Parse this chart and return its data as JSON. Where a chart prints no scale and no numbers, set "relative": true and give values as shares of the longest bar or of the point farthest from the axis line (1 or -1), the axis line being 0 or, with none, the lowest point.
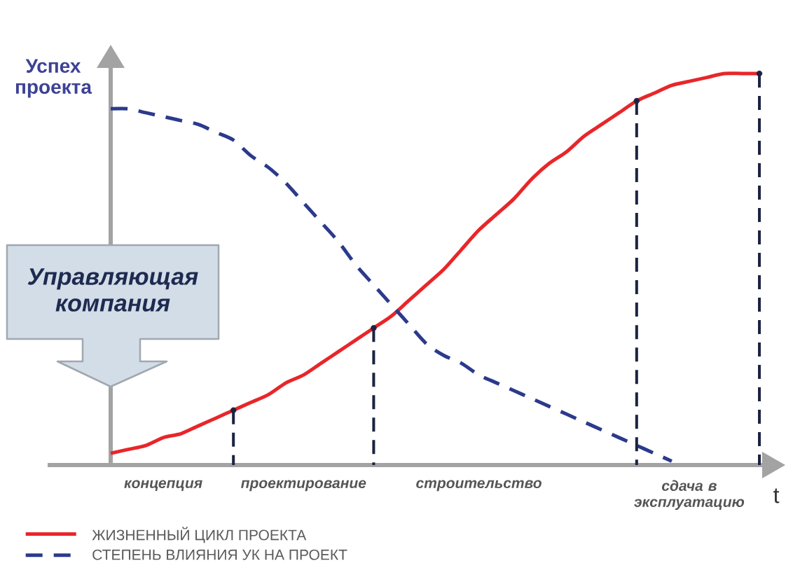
{
  "chart_data": {
    "type": "line",
    "relative": true,
    "categories": [
      null,
      null,
      null,
      "концепция",
      null,
      null,
      null,
      null,
      null,
      null,
      null,
      "проектирование",
      null,
      null,
      null,
      null,
      null,
      null,
      null,
      null,
      null,
      "строительство",
      null,
      null,
      null,
      null,
      null,
      null,
      null,
      null,
      null,
      null,
      null,
      "сдача в эксплуатацию",
      null,
      null,
      null,
      null
    ],
    "xlabel": "t",
    "ylabel": "Успех проекта",
    "annotations": [
      "Управляющая компания"
    ],
    "legend": "bottom left",
    "marker": "none",
    "series": [
      {
        "name": "ЖИЗНЕННЫЙ ЦИКЛ ПРОЕКТА",
        "color": "#e8262a",
        "line_style": "solid",
        "values": [
          0.03,
          0.04,
          0.05,
          0.07,
          0.08,
          0.1,
          0.12,
          0.14,
          0.16,
          0.18,
          0.21,
          0.23,
          0.26,
          0.29,
          0.32,
          0.35,
          0.38,
          0.42,
          0.46,
          0.5,
          0.55,
          0.6,
          0.64,
          0.68,
          0.73,
          0.77,
          0.8,
          0.84,
          0.87,
          0.9,
          0.93,
          0.95,
          0.97,
          0.98,
          0.99,
          1.0,
          1.0,
          1.0
        ]
      },
      {
        "name": "СТЕПЕНЬ ВЛИЯНИЯ  УК НА ПРОЕКТ",
        "color": "#2b3a8c",
        "line_style": "dashed",
        "values": [
          0.91,
          0.91,
          0.9,
          0.89,
          0.88,
          0.87,
          0.85,
          0.83,
          0.79,
          0.76,
          0.72,
          0.67,
          0.62,
          0.57,
          0.51,
          0.46,
          0.41,
          0.36,
          0.31,
          0.28,
          0.26,
          0.23,
          0.21,
          0.19,
          0.17,
          0.15,
          0.13,
          0.11,
          0.09,
          0.07,
          0.05,
          0.03,
          0.01,
          null,
          null,
          null,
          null,
          null
        ]
      },
      {
        "type": "lollipop",
        "color": "#1c2340",
        "line_style": "dashed",
        "marker": "circle",
        "values": [
          null,
          null,
          null,
          null,
          null,
          null,
          null,
          0.14,
          null,
          null,
          null,
          null,
          null,
          null,
          null,
          0.35,
          null,
          null,
          null,
          null,
          null,
          null,
          null,
          null,
          null,
          null,
          null,
          null,
          null,
          null,
          0.93,
          null,
          null,
          null,
          null,
          null,
          null,
          1.0
        ]
      }
    ]
  }
}
